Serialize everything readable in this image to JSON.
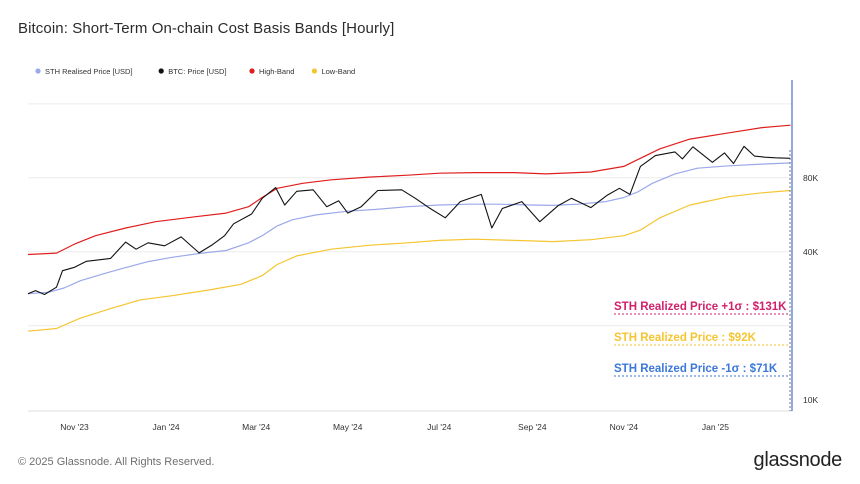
{
  "title": "Bitcoin: Short-Term On-chain Cost Basis Bands [Hourly]",
  "footer": {
    "copyright": "© 2025 Glassnode. All Rights Reserved.",
    "brand": "glassnode"
  },
  "annotations": {
    "high": "STH Realized Price +1σ : $131K",
    "mid": "STH Realized Price  : $92K",
    "low": "STH Realized Price -1σ : $71K"
  },
  "colors": {
    "sth": "#9ba8ea",
    "btc": "#111111",
    "high": "#e01e1e",
    "low": "#f5c531",
    "high_ann": "#d0216b",
    "mid_ann": "#f5c531",
    "low_ann": "#3b78d8",
    "grid": "#ececec",
    "cursor": "#4a6fd0"
  },
  "chart_data": {
    "type": "line",
    "title": "Bitcoin: Short-Term On-chain Cost Basis Bands [Hourly]",
    "y_scale": "log",
    "ylim": [
      9000,
      200000
    ],
    "y_ticks": [
      {
        "value": 10000,
        "label": "10K"
      },
      {
        "value": 40000,
        "label": "40K"
      },
      {
        "value": 80000,
        "label": "80K"
      }
    ],
    "xlim": [
      "2023-10-01",
      "2025-02-21"
    ],
    "x_ticks": [
      {
        "date": "2023-11-01",
        "label": "Nov '23"
      },
      {
        "date": "2024-01-01",
        "label": "Jan '24"
      },
      {
        "date": "2024-03-01",
        "label": "Mar '24"
      },
      {
        "date": "2024-05-01",
        "label": "May '24"
      },
      {
        "date": "2024-07-01",
        "label": "Jul '24"
      },
      {
        "date": "2024-09-01",
        "label": "Sep '24"
      },
      {
        "date": "2024-11-01",
        "label": "Nov '24"
      },
      {
        "date": "2025-01-01",
        "label": "Jan '25"
      }
    ],
    "grid": true,
    "legend_position": "top-left",
    "series": [
      {
        "name": "STH Realised Price [USD]",
        "color": "#9ba8ea",
        "points": [
          [
            "2023-10-01",
            27000
          ],
          [
            "2023-10-15",
            27400
          ],
          [
            "2023-10-25",
            28500
          ],
          [
            "2023-11-05",
            30500
          ],
          [
            "2023-11-20",
            32500
          ],
          [
            "2023-12-05",
            34500
          ],
          [
            "2023-12-20",
            36500
          ],
          [
            "2024-01-05",
            38000
          ],
          [
            "2024-01-25",
            39500
          ],
          [
            "2024-02-10",
            40500
          ],
          [
            "2024-02-25",
            43500
          ],
          [
            "2024-03-05",
            46500
          ],
          [
            "2024-03-15",
            51000
          ],
          [
            "2024-03-25",
            54000
          ],
          [
            "2024-04-10",
            56500
          ],
          [
            "2024-05-01",
            58500
          ],
          [
            "2024-05-20",
            59500
          ],
          [
            "2024-06-10",
            61000
          ],
          [
            "2024-07-01",
            62000
          ],
          [
            "2024-07-20",
            62500
          ],
          [
            "2024-08-10",
            62500
          ],
          [
            "2024-09-01",
            62000
          ],
          [
            "2024-09-15",
            61800
          ],
          [
            "2024-10-01",
            62500
          ],
          [
            "2024-10-20",
            64000
          ],
          [
            "2024-11-01",
            66500
          ],
          [
            "2024-11-10",
            70000
          ],
          [
            "2024-11-20",
            76000
          ],
          [
            "2024-12-05",
            83000
          ],
          [
            "2024-12-20",
            87500
          ],
          [
            "2025-01-10",
            89500
          ],
          [
            "2025-02-01",
            91000
          ],
          [
            "2025-02-20",
            92000
          ]
        ]
      },
      {
        "name": "BTC: Price [USD]",
        "color": "#111111",
        "points": [
          [
            "2023-10-01",
            27000
          ],
          [
            "2023-10-06",
            27800
          ],
          [
            "2023-10-12",
            26800
          ],
          [
            "2023-10-20",
            28700
          ],
          [
            "2023-10-24",
            33500
          ],
          [
            "2023-11-01",
            34600
          ],
          [
            "2023-11-09",
            36600
          ],
          [
            "2023-11-16",
            37000
          ],
          [
            "2023-11-25",
            37600
          ],
          [
            "2023-12-05",
            43800
          ],
          [
            "2023-12-12",
            41000
          ],
          [
            "2023-12-20",
            43500
          ],
          [
            "2023-12-31",
            42300
          ],
          [
            "2024-01-11",
            46000
          ],
          [
            "2024-01-23",
            39600
          ],
          [
            "2024-02-01",
            42800
          ],
          [
            "2024-02-09",
            46500
          ],
          [
            "2024-02-15",
            52000
          ],
          [
            "2024-02-27",
            57000
          ],
          [
            "2024-03-05",
            66000
          ],
          [
            "2024-03-14",
            73000
          ],
          [
            "2024-03-20",
            62000
          ],
          [
            "2024-03-28",
            70500
          ],
          [
            "2024-04-08",
            71500
          ],
          [
            "2024-04-17",
            61000
          ],
          [
            "2024-04-25",
            64500
          ],
          [
            "2024-05-01",
            57500
          ],
          [
            "2024-05-10",
            61000
          ],
          [
            "2024-05-21",
            71000
          ],
          [
            "2024-06-06",
            71500
          ],
          [
            "2024-06-15",
            66000
          ],
          [
            "2024-06-24",
            60500
          ],
          [
            "2024-07-05",
            55000
          ],
          [
            "2024-07-15",
            64000
          ],
          [
            "2024-07-29",
            68500
          ],
          [
            "2024-08-05",
            50000
          ],
          [
            "2024-08-12",
            60000
          ],
          [
            "2024-08-25",
            64000
          ],
          [
            "2024-09-06",
            53000
          ],
          [
            "2024-09-18",
            61500
          ],
          [
            "2024-09-27",
            66000
          ],
          [
            "2024-10-10",
            60500
          ],
          [
            "2024-10-21",
            68000
          ],
          [
            "2024-10-29",
            72500
          ],
          [
            "2024-11-05",
            68500
          ],
          [
            "2024-11-12",
            89000
          ],
          [
            "2024-11-22",
            98500
          ],
          [
            "2024-12-05",
            102000
          ],
          [
            "2024-12-10",
            95500
          ],
          [
            "2024-12-17",
            107000
          ],
          [
            "2024-12-30",
            92500
          ],
          [
            "2025-01-07",
            101000
          ],
          [
            "2025-01-13",
            91500
          ],
          [
            "2025-01-20",
            107500
          ],
          [
            "2025-01-27",
            98000
          ],
          [
            "2025-02-03",
            97000
          ],
          [
            "2025-02-10",
            96500
          ],
          [
            "2025-02-20",
            96000
          ]
        ]
      },
      {
        "name": "High-Band",
        "color": "#e01e1e",
        "points": [
          [
            "2023-10-01",
            39000
          ],
          [
            "2023-10-20",
            39500
          ],
          [
            "2023-11-01",
            43000
          ],
          [
            "2023-11-15",
            46500
          ],
          [
            "2023-12-05",
            50000
          ],
          [
            "2023-12-25",
            53000
          ],
          [
            "2024-01-20",
            55500
          ],
          [
            "2024-02-10",
            57500
          ],
          [
            "2024-02-25",
            61000
          ],
          [
            "2024-03-05",
            66500
          ],
          [
            "2024-03-15",
            72500
          ],
          [
            "2024-04-01",
            76000
          ],
          [
            "2024-04-20",
            78500
          ],
          [
            "2024-05-15",
            80500
          ],
          [
            "2024-06-10",
            82000
          ],
          [
            "2024-07-01",
            83500
          ],
          [
            "2024-07-25",
            84000
          ],
          [
            "2024-08-20",
            84000
          ],
          [
            "2024-09-10",
            83000
          ],
          [
            "2024-10-10",
            84500
          ],
          [
            "2024-11-01",
            89000
          ],
          [
            "2024-11-12",
            96000
          ],
          [
            "2024-11-25",
            105000
          ],
          [
            "2024-12-15",
            115000
          ],
          [
            "2025-01-10",
            122000
          ],
          [
            "2025-02-01",
            128000
          ],
          [
            "2025-02-20",
            131000
          ]
        ]
      },
      {
        "name": "Low-Band",
        "color": "#f5c531",
        "points": [
          [
            "2023-10-01",
            19000
          ],
          [
            "2023-10-20",
            19500
          ],
          [
            "2023-11-05",
            21500
          ],
          [
            "2023-11-25",
            23500
          ],
          [
            "2023-12-15",
            25500
          ],
          [
            "2024-01-05",
            26500
          ],
          [
            "2024-01-30",
            28000
          ],
          [
            "2024-02-20",
            29500
          ],
          [
            "2024-03-05",
            32000
          ],
          [
            "2024-03-15",
            35500
          ],
          [
            "2024-03-28",
            38500
          ],
          [
            "2024-04-20",
            41000
          ],
          [
            "2024-05-15",
            42500
          ],
          [
            "2024-06-10",
            43500
          ],
          [
            "2024-07-01",
            44500
          ],
          [
            "2024-07-25",
            45000
          ],
          [
            "2024-08-20",
            44500
          ],
          [
            "2024-09-15",
            44000
          ],
          [
            "2024-10-10",
            44800
          ],
          [
            "2024-11-01",
            46500
          ],
          [
            "2024-11-12",
            49000
          ],
          [
            "2024-11-25",
            55000
          ],
          [
            "2024-12-15",
            62000
          ],
          [
            "2025-01-10",
            67000
          ],
          [
            "2025-02-01",
            69500
          ],
          [
            "2025-02-20",
            71000
          ]
        ]
      }
    ]
  }
}
